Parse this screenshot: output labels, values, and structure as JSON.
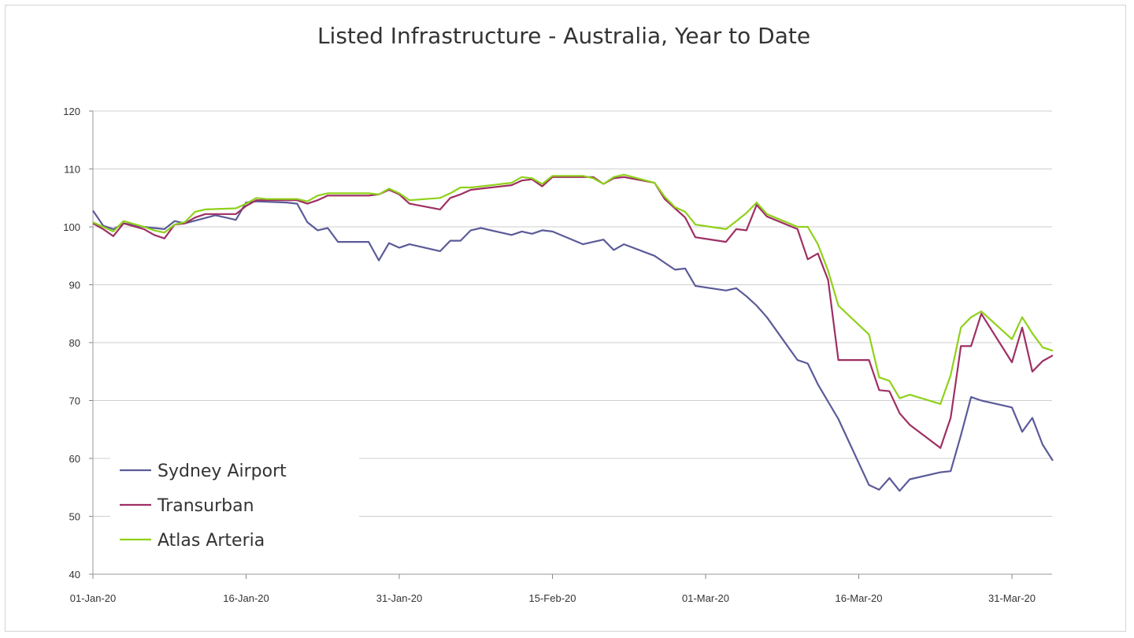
{
  "chart_data": {
    "type": "line",
    "title": "Listed Infrastructure - Australia, Year to Date",
    "xlabel": "",
    "ylabel": "",
    "ylim": [
      40,
      120
    ],
    "yticks": [
      40,
      50,
      60,
      70,
      80,
      90,
      100,
      110,
      120
    ],
    "xlim": [
      "2020-01-01",
      "2020-04-03"
    ],
    "xticks": [
      {
        "date": "2020-01-01",
        "label": "01-Jan-20"
      },
      {
        "date": "2020-01-16",
        "label": "16-Jan-20"
      },
      {
        "date": "2020-01-31",
        "label": "31-Jan-20"
      },
      {
        "date": "2020-02-15",
        "label": "15-Feb-20"
      },
      {
        "date": "2020-03-01",
        "label": "01-Mar-20"
      },
      {
        "date": "2020-03-16",
        "label": "16-Mar-20"
      },
      {
        "date": "2020-03-31",
        "label": "31-Mar-20"
      }
    ],
    "grid": true,
    "legend_position": "bottom-left",
    "series": [
      {
        "name": "Sydney Airport",
        "color": "#5b5b99",
        "points": [
          [
            "2020-01-01",
            102.8
          ],
          [
            "2020-01-02",
            100.2
          ],
          [
            "2020-01-03",
            99.6
          ],
          [
            "2020-01-04",
            100.6
          ],
          [
            "2020-01-06",
            100.0
          ],
          [
            "2020-01-07",
            99.8
          ],
          [
            "2020-01-08",
            99.6
          ],
          [
            "2020-01-09",
            101.0
          ],
          [
            "2020-01-10",
            100.6
          ],
          [
            "2020-01-13",
            102.0
          ],
          [
            "2020-01-14",
            101.6
          ],
          [
            "2020-01-15",
            101.2
          ],
          [
            "2020-01-16",
            104.2
          ],
          [
            "2020-01-17",
            104.4
          ],
          [
            "2020-01-20",
            104.2
          ],
          [
            "2020-01-21",
            104.0
          ],
          [
            "2020-01-22",
            100.8
          ],
          [
            "2020-01-23",
            99.4
          ],
          [
            "2020-01-24",
            99.8
          ],
          [
            "2020-01-25",
            97.4
          ],
          [
            "2020-01-28",
            97.4
          ],
          [
            "2020-01-29",
            94.2
          ],
          [
            "2020-01-30",
            97.2
          ],
          [
            "2020-01-31",
            96.4
          ],
          [
            "2020-02-01",
            97.0
          ],
          [
            "2020-02-04",
            95.8
          ],
          [
            "2020-02-05",
            97.6
          ],
          [
            "2020-02-06",
            97.6
          ],
          [
            "2020-02-07",
            99.4
          ],
          [
            "2020-02-08",
            99.8
          ],
          [
            "2020-02-11",
            98.6
          ],
          [
            "2020-02-12",
            99.2
          ],
          [
            "2020-02-13",
            98.8
          ],
          [
            "2020-02-14",
            99.4
          ],
          [
            "2020-02-15",
            99.2
          ],
          [
            "2020-02-18",
            97.0
          ],
          [
            "2020-02-19",
            97.4
          ],
          [
            "2020-02-20",
            97.8
          ],
          [
            "2020-02-21",
            96.0
          ],
          [
            "2020-02-22",
            97.0
          ],
          [
            "2020-02-25",
            95.0
          ],
          [
            "2020-02-26",
            93.8
          ],
          [
            "2020-02-27",
            92.6
          ],
          [
            "2020-02-28",
            92.8
          ],
          [
            "2020-02-29",
            89.8
          ],
          [
            "2020-03-03",
            89.0
          ],
          [
            "2020-03-04",
            89.4
          ],
          [
            "2020-03-05",
            88.0
          ],
          [
            "2020-03-06",
            86.4
          ],
          [
            "2020-03-07",
            84.4
          ],
          [
            "2020-03-10",
            77.0
          ],
          [
            "2020-03-11",
            76.4
          ],
          [
            "2020-03-12",
            72.8
          ],
          [
            "2020-03-13",
            69.8
          ],
          [
            "2020-03-14",
            66.8
          ],
          [
            "2020-03-17",
            55.4
          ],
          [
            "2020-03-18",
            54.6
          ],
          [
            "2020-03-19",
            56.6
          ],
          [
            "2020-03-20",
            54.4
          ],
          [
            "2020-03-21",
            56.4
          ],
          [
            "2020-03-24",
            57.6
          ],
          [
            "2020-03-25",
            57.8
          ],
          [
            "2020-03-26",
            64.0
          ],
          [
            "2020-03-27",
            70.6
          ],
          [
            "2020-03-28",
            70.0
          ],
          [
            "2020-03-31",
            68.8
          ],
          [
            "2020-04-01",
            64.6
          ],
          [
            "2020-04-02",
            67.0
          ],
          [
            "2020-04-03",
            62.4
          ],
          [
            "2020-04-04",
            59.6
          ]
        ]
      },
      {
        "name": "Transurban",
        "color": "#9e2f63",
        "points": [
          [
            "2020-01-01",
            100.6
          ],
          [
            "2020-01-02",
            99.6
          ],
          [
            "2020-01-03",
            98.4
          ],
          [
            "2020-01-04",
            100.6
          ],
          [
            "2020-01-06",
            99.6
          ],
          [
            "2020-01-07",
            98.6
          ],
          [
            "2020-01-08",
            98.0
          ],
          [
            "2020-01-09",
            100.4
          ],
          [
            "2020-01-10",
            100.6
          ],
          [
            "2020-01-11",
            101.6
          ],
          [
            "2020-01-12",
            102.2
          ],
          [
            "2020-01-15",
            102.2
          ],
          [
            "2020-01-16",
            103.6
          ],
          [
            "2020-01-17",
            104.6
          ],
          [
            "2020-01-18",
            104.6
          ],
          [
            "2020-01-21",
            104.6
          ],
          [
            "2020-01-22",
            104.0
          ],
          [
            "2020-01-23",
            104.6
          ],
          [
            "2020-01-24",
            105.4
          ],
          [
            "2020-01-25",
            105.4
          ],
          [
            "2020-01-28",
            105.4
          ],
          [
            "2020-01-29",
            105.6
          ],
          [
            "2020-01-30",
            106.4
          ],
          [
            "2020-01-31",
            105.6
          ],
          [
            "2020-02-01",
            104.0
          ],
          [
            "2020-02-04",
            103.0
          ],
          [
            "2020-02-05",
            105.0
          ],
          [
            "2020-02-06",
            105.6
          ],
          [
            "2020-02-07",
            106.4
          ],
          [
            "2020-02-08",
            106.6
          ],
          [
            "2020-02-11",
            107.2
          ],
          [
            "2020-02-12",
            108.0
          ],
          [
            "2020-02-13",
            108.2
          ],
          [
            "2020-02-14",
            107.0
          ],
          [
            "2020-02-15",
            108.6
          ],
          [
            "2020-02-18",
            108.6
          ],
          [
            "2020-02-19",
            108.6
          ],
          [
            "2020-02-20",
            107.4
          ],
          [
            "2020-02-21",
            108.4
          ],
          [
            "2020-02-22",
            108.6
          ],
          [
            "2020-02-25",
            107.6
          ],
          [
            "2020-02-26",
            104.8
          ],
          [
            "2020-02-27",
            103.2
          ],
          [
            "2020-02-28",
            101.6
          ],
          [
            "2020-02-29",
            98.2
          ],
          [
            "2020-03-03",
            97.4
          ],
          [
            "2020-03-04",
            99.6
          ],
          [
            "2020-03-05",
            99.4
          ],
          [
            "2020-03-06",
            103.8
          ],
          [
            "2020-03-07",
            101.8
          ],
          [
            "2020-03-10",
            99.6
          ],
          [
            "2020-03-11",
            94.4
          ],
          [
            "2020-03-12",
            95.4
          ],
          [
            "2020-03-13",
            90.8
          ],
          [
            "2020-03-14",
            77.0
          ],
          [
            "2020-03-17",
            77.0
          ],
          [
            "2020-03-18",
            71.8
          ],
          [
            "2020-03-19",
            71.6
          ],
          [
            "2020-03-20",
            67.8
          ],
          [
            "2020-03-21",
            65.8
          ],
          [
            "2020-03-24",
            61.8
          ],
          [
            "2020-03-25",
            67.0
          ],
          [
            "2020-03-26",
            79.4
          ],
          [
            "2020-03-27",
            79.4
          ],
          [
            "2020-03-28",
            85.0
          ],
          [
            "2020-03-31",
            76.6
          ],
          [
            "2020-04-01",
            82.6
          ],
          [
            "2020-04-02",
            75.0
          ],
          [
            "2020-04-03",
            76.8
          ],
          [
            "2020-04-04",
            77.8
          ]
        ]
      },
      {
        "name": "Atlas Arteria",
        "color": "#8fd11a",
        "points": [
          [
            "2020-01-01",
            100.8
          ],
          [
            "2020-01-02",
            100.0
          ],
          [
            "2020-01-03",
            99.2
          ],
          [
            "2020-01-04",
            101.0
          ],
          [
            "2020-01-06",
            100.0
          ],
          [
            "2020-01-07",
            99.4
          ],
          [
            "2020-01-08",
            99.0
          ],
          [
            "2020-01-09",
            100.4
          ],
          [
            "2020-01-10",
            100.8
          ],
          [
            "2020-01-11",
            102.6
          ],
          [
            "2020-01-12",
            103.0
          ],
          [
            "2020-01-15",
            103.2
          ],
          [
            "2020-01-16",
            104.0
          ],
          [
            "2020-01-17",
            105.0
          ],
          [
            "2020-01-18",
            104.8
          ],
          [
            "2020-01-21",
            104.8
          ],
          [
            "2020-01-22",
            104.4
          ],
          [
            "2020-01-23",
            105.4
          ],
          [
            "2020-01-24",
            105.8
          ],
          [
            "2020-01-25",
            105.8
          ],
          [
            "2020-01-28",
            105.8
          ],
          [
            "2020-01-29",
            105.6
          ],
          [
            "2020-01-30",
            106.6
          ],
          [
            "2020-01-31",
            105.8
          ],
          [
            "2020-02-01",
            104.6
          ],
          [
            "2020-02-04",
            105.0
          ],
          [
            "2020-02-05",
            105.8
          ],
          [
            "2020-02-06",
            106.8
          ],
          [
            "2020-02-07",
            106.8
          ],
          [
            "2020-02-08",
            107.0
          ],
          [
            "2020-02-11",
            107.6
          ],
          [
            "2020-02-12",
            108.6
          ],
          [
            "2020-02-13",
            108.4
          ],
          [
            "2020-02-14",
            107.4
          ],
          [
            "2020-02-15",
            108.8
          ],
          [
            "2020-02-18",
            108.8
          ],
          [
            "2020-02-19",
            108.4
          ],
          [
            "2020-02-20",
            107.4
          ],
          [
            "2020-02-21",
            108.6
          ],
          [
            "2020-02-22",
            109.0
          ],
          [
            "2020-02-25",
            107.6
          ],
          [
            "2020-02-26",
            105.2
          ],
          [
            "2020-02-27",
            103.4
          ],
          [
            "2020-02-28",
            102.6
          ],
          [
            "2020-02-29",
            100.4
          ],
          [
            "2020-03-03",
            99.6
          ],
          [
            "2020-03-04",
            101.0
          ],
          [
            "2020-03-05",
            102.4
          ],
          [
            "2020-03-06",
            104.2
          ],
          [
            "2020-03-07",
            102.2
          ],
          [
            "2020-03-10",
            100.0
          ],
          [
            "2020-03-11",
            100.0
          ],
          [
            "2020-03-12",
            97.0
          ],
          [
            "2020-03-13",
            92.4
          ],
          [
            "2020-03-14",
            86.4
          ],
          [
            "2020-03-17",
            81.4
          ],
          [
            "2020-03-18",
            74.0
          ],
          [
            "2020-03-19",
            73.4
          ],
          [
            "2020-03-20",
            70.4
          ],
          [
            "2020-03-21",
            71.0
          ],
          [
            "2020-03-24",
            69.4
          ],
          [
            "2020-03-25",
            74.4
          ],
          [
            "2020-03-26",
            82.6
          ],
          [
            "2020-03-27",
            84.4
          ],
          [
            "2020-03-28",
            85.4
          ],
          [
            "2020-03-31",
            80.6
          ],
          [
            "2020-04-01",
            84.4
          ],
          [
            "2020-04-02",
            81.6
          ],
          [
            "2020-04-03",
            79.2
          ],
          [
            "2020-04-04",
            78.6
          ]
        ]
      }
    ]
  }
}
